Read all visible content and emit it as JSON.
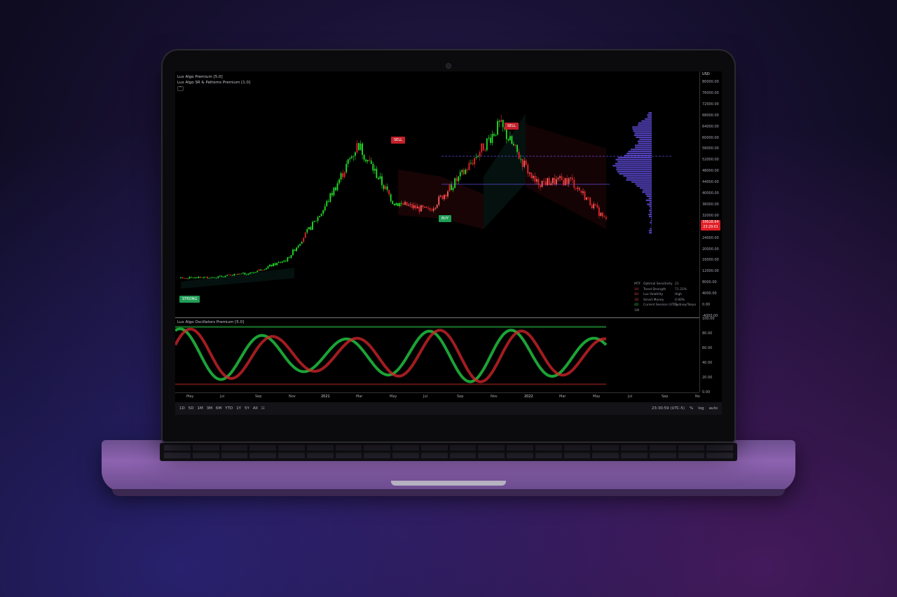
{
  "chart_window": {
    "legend": [
      "Lux Algo Premium [5.0]",
      "Lux Algo SR & Patterns Premium [1.0]"
    ],
    "collapse": "^",
    "currency": "USD",
    "price_ticks": [
      "80000.00",
      "76000.00",
      "72000.00",
      "68000.00",
      "64000.00",
      "60000.00",
      "56000.00",
      "52000.00",
      "48000.00",
      "44000.00",
      "40000.00",
      "36000.00",
      "32000.00",
      "28000.00",
      "24000.00",
      "20000.00",
      "16000.00",
      "12000.00",
      "8000.00",
      "4000.00",
      "0.00",
      "-4000.00"
    ],
    "last_price": "39528.64",
    "countdown": "23:29:01",
    "signals": {
      "sell": "SELL",
      "buy": "BUY",
      "strong": "STRONG"
    },
    "dashboard": [
      {
        "c1": "MTF",
        "c2": "Optimal Sensitivity",
        "c3": "21"
      },
      {
        "c1": "1H",
        "c2": "Trend Strength",
        "c3": "71.31%"
      },
      {
        "c1": "4H",
        "c2": "Lux Volatility",
        "c3": "High"
      },
      {
        "c1": "1D",
        "c2": "Smart Money",
        "c3": "0.00%"
      },
      {
        "c1": "4D",
        "c2": "Current Session (UTC)",
        "c3": "Sydney/Tokyo"
      },
      {
        "c1": "1W",
        "c2": "",
        "c3": ""
      }
    ],
    "oscillator_title": "Lux Algo Oscillators Premium [5.0]",
    "oscillator_ticks": [
      "100.00",
      "80.00",
      "60.00",
      "40.00",
      "20.00",
      "0.00"
    ],
    "time_labels": [
      "May",
      "Jul",
      "Sep",
      "Nov",
      "2021",
      "Mar",
      "May",
      "Jul",
      "Sep",
      "Nov",
      "2022",
      "Mar",
      "May",
      "Jul",
      "Sep",
      "No"
    ],
    "toolbar": {
      "ranges": [
        "1D",
        "5D",
        "1M",
        "3M",
        "6M",
        "YTD",
        "1Y",
        "5Y",
        "All"
      ],
      "time": "23:30:59 (UTC-5)",
      "percent": "%",
      "log": "log",
      "auto": "auto"
    }
  },
  "chart_data": {
    "type": "line",
    "title": "",
    "series": [
      {
        "x": [
          "2020-05",
          "2020-07",
          "2020-09",
          "2020-11",
          "2021-01",
          "2021-03",
          "2021-05",
          "2021-07",
          "2021-09",
          "2021-11",
          "2022-01",
          "2022-03",
          "2022-05"
        ],
        "values": [
          8800,
          9200,
          10700,
          15500,
          33000,
          57000,
          36000,
          33000,
          47000,
          64000,
          43000,
          44000,
          29500
        ]
      }
    ],
    "ylim": [
      -4000,
      80000
    ],
    "colors": {
      "up": "#26e02c",
      "down": "#e8252b",
      "accent": "#5f4bd8"
    }
  }
}
